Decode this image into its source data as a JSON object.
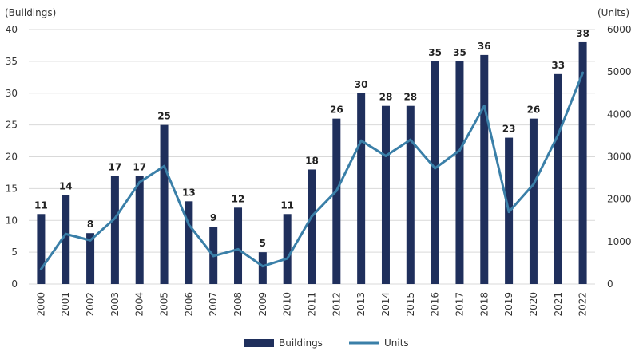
{
  "chart_data": {
    "type": "bar",
    "categories": [
      "2000",
      "2001",
      "2002",
      "2003",
      "2004",
      "2005",
      "2006",
      "2007",
      "2008",
      "2009",
      "2010",
      "2011",
      "2012",
      "2013",
      "2014",
      "2015",
      "2016",
      "2017",
      "2018",
      "2019",
      "2020",
      "2021",
      "2022"
    ],
    "series": [
      {
        "name": "Buildings",
        "type": "bar",
        "axis": "left",
        "values": [
          11,
          14,
          8,
          17,
          17,
          25,
          13,
          9,
          12,
          5,
          11,
          18,
          26,
          30,
          28,
          28,
          35,
          35,
          36,
          23,
          26,
          33,
          38
        ]
      },
      {
        "name": "Units",
        "type": "line",
        "axis": "right",
        "values": [
          350,
          1180,
          1030,
          1550,
          2400,
          2780,
          1400,
          660,
          820,
          420,
          600,
          1600,
          2200,
          3380,
          3020,
          3400,
          2730,
          3150,
          4200,
          1700,
          2350,
          3520,
          4980
        ]
      }
    ],
    "left_axis": {
      "label": "(Buildings)",
      "ylim": [
        0,
        40
      ],
      "ticks": [
        0,
        5,
        10,
        15,
        20,
        25,
        30,
        35,
        40
      ]
    },
    "right_axis": {
      "label": "(Units)",
      "ylim": [
        0,
        6000
      ],
      "ticks": [
        0,
        1000,
        2000,
        3000,
        4000,
        5000,
        6000
      ]
    },
    "grid": true,
    "legend_position": "bottom",
    "colors": {
      "bar": "#1f2f5c",
      "line": "#3a7fa8",
      "grid": "#d9d9d9",
      "text": "#333333"
    }
  }
}
